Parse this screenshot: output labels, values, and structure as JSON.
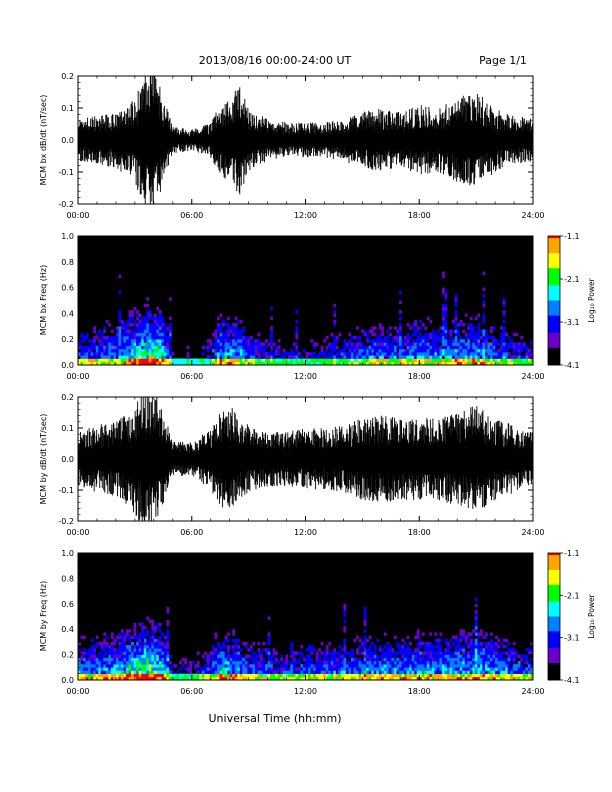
{
  "header": {
    "title": "2013/08/16  00:00-24:00 UT",
    "page": "Page 1/1"
  },
  "footer": {
    "xlabel": "Universal Time (hh:mm)"
  },
  "colorbar": {
    "ticks": [
      "-1.1",
      "-2.1",
      "-3.1",
      "-4.1"
    ],
    "label": "Log₁₀ Power",
    "colors": [
      "#ff0000",
      "#ffa500",
      "#ffff00",
      "#00ff00",
      "#00ffff",
      "#0080ff",
      "#0000ff",
      "#6a00c8",
      "#000000"
    ]
  },
  "chart_data": [
    {
      "type": "line",
      "ylabel": "MCM bx dB/dt (nT/sec)",
      "xlim": [
        0,
        24
      ],
      "ylim": [
        -0.2,
        0.2
      ],
      "xticks": [
        "00:00",
        "06:00",
        "12:00",
        "18:00",
        "24:00"
      ],
      "yticks": [
        "0.2",
        "0.1",
        "0.0",
        "-0.1",
        "-0.2"
      ],
      "activity_envelope": {
        "hours": [
          0,
          1,
          2,
          3,
          3.5,
          4,
          4.5,
          5,
          6,
          7,
          7.5,
          8,
          8.5,
          9,
          10,
          11,
          12,
          13,
          14,
          15,
          16,
          17,
          18,
          19,
          20,
          21,
          22,
          23,
          24
        ],
        "amplitude": [
          0.06,
          0.07,
          0.08,
          0.12,
          0.2,
          0.22,
          0.12,
          0.04,
          0.03,
          0.05,
          0.1,
          0.12,
          0.16,
          0.09,
          0.06,
          0.05,
          0.05,
          0.05,
          0.06,
          0.08,
          0.09,
          0.08,
          0.1,
          0.09,
          0.12,
          0.14,
          0.09,
          0.07,
          0.06
        ]
      }
    },
    {
      "type": "heatmap",
      "ylabel": "MCM bx Freq (Hz)",
      "xlim": [
        0,
        24
      ],
      "ylim": [
        0.0,
        1.0
      ],
      "xticks": [
        "00:00",
        "06:00",
        "12:00",
        "18:00",
        "24:00"
      ],
      "yticks": [
        "1.0",
        "0.8",
        "0.6",
        "0.4",
        "0.2",
        "0.0"
      ],
      "color_range_log10_power": [
        -4.1,
        -1.1
      ],
      "activity_envelope": {
        "hours": [
          0,
          1,
          2,
          3,
          3.5,
          4,
          4.5,
          5,
          6,
          7,
          7.5,
          8,
          8.5,
          9,
          10,
          11,
          12,
          13,
          14,
          15,
          16,
          17,
          18,
          19,
          20,
          21,
          22,
          23,
          24
        ],
        "amplitude": [
          0.5,
          0.55,
          0.6,
          0.8,
          1.0,
          1.0,
          0.8,
          0.3,
          0.25,
          0.4,
          0.75,
          0.7,
          0.7,
          0.5,
          0.4,
          0.35,
          0.35,
          0.4,
          0.45,
          0.55,
          0.6,
          0.55,
          0.65,
          0.6,
          0.65,
          0.7,
          0.55,
          0.45,
          0.4
        ]
      }
    },
    {
      "type": "line",
      "ylabel": "MCM by dB/dt (nT/sec)",
      "xlim": [
        0,
        24
      ],
      "ylim": [
        -0.2,
        0.2
      ],
      "xticks": [
        "00:00",
        "06:00",
        "12:00",
        "18:00",
        "24:00"
      ],
      "yticks": [
        "0.2",
        "0.1",
        "0.0",
        "-0.1",
        "-0.2"
      ],
      "activity_envelope": {
        "hours": [
          0,
          1,
          2,
          3,
          3.5,
          4,
          4.5,
          5,
          6,
          7,
          7.5,
          8,
          8.5,
          9,
          10,
          11,
          12,
          13,
          14,
          15,
          16,
          17,
          18,
          19,
          20,
          21,
          22,
          23,
          24
        ],
        "amplitude": [
          0.08,
          0.1,
          0.11,
          0.16,
          0.22,
          0.22,
          0.14,
          0.05,
          0.05,
          0.09,
          0.14,
          0.16,
          0.12,
          0.1,
          0.08,
          0.08,
          0.09,
          0.09,
          0.1,
          0.12,
          0.13,
          0.12,
          0.12,
          0.12,
          0.14,
          0.16,
          0.12,
          0.1,
          0.08
        ]
      }
    },
    {
      "type": "heatmap",
      "ylabel": "MCM by Freq (Hz)",
      "xlim": [
        0,
        24
      ],
      "ylim": [
        0.0,
        1.0
      ],
      "xticks": [
        "00:00",
        "06:00",
        "12:00",
        "18:00",
        "24:00"
      ],
      "yticks": [
        "1.0",
        "0.8",
        "0.6",
        "0.4",
        "0.2",
        "0.0"
      ],
      "color_range_log10_power": [
        -4.1,
        -1.1
      ],
      "activity_envelope": {
        "hours": [
          0,
          1,
          2,
          3,
          3.5,
          4,
          4.5,
          5,
          6,
          7,
          7.5,
          8,
          8.5,
          9,
          10,
          11,
          12,
          13,
          14,
          15,
          16,
          17,
          18,
          19,
          20,
          21,
          22,
          23,
          24
        ],
        "amplitude": [
          0.6,
          0.65,
          0.7,
          0.85,
          1.0,
          1.0,
          0.8,
          0.35,
          0.35,
          0.5,
          0.8,
          0.7,
          0.65,
          0.55,
          0.5,
          0.45,
          0.5,
          0.55,
          0.55,
          0.6,
          0.65,
          0.6,
          0.7,
          0.65,
          0.7,
          0.75,
          0.65,
          0.55,
          0.5
        ]
      }
    }
  ]
}
